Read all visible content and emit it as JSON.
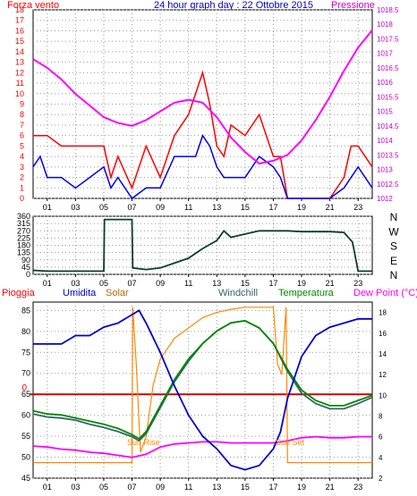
{
  "chart_data": [
    {
      "type": "line",
      "title": "24 hour graph day : 22 Ottobre 2015",
      "left_label": "Forza vento",
      "right_label": "Pressione",
      "x_ticks": [
        "01",
        "03",
        "05",
        "07",
        "09",
        "11",
        "13",
        "15",
        "17",
        "19",
        "21",
        "23"
      ],
      "y_left_ticks": [
        0,
        1,
        2,
        3,
        4,
        5,
        6,
        7,
        8,
        9,
        10,
        11,
        12,
        13,
        14,
        15,
        16,
        17,
        18
      ],
      "y_left_range": [
        0,
        18
      ],
      "y_right_ticks": [
        "1012",
        "1012.5",
        "1013",
        "1013.5",
        "1014",
        "1014.5",
        "1015",
        "1015.5",
        "1016",
        "1016.5",
        "1017",
        "1017.5",
        "1018",
        "1018.5"
      ],
      "y_right_range": [
        1012,
        1018.5
      ],
      "grid": true,
      "series": [
        {
          "name": "Forza vento",
          "color": "#ff0000",
          "axis": "left",
          "x": [
            0,
            1,
            2,
            3,
            4,
            5,
            5.5,
            6,
            7,
            8,
            9,
            10,
            11,
            11.5,
            12,
            12.5,
            13,
            13.5,
            14,
            15,
            16,
            17,
            17.5,
            18,
            19,
            20,
            21,
            22,
            22.5,
            23,
            23.5,
            24
          ],
          "values": [
            6,
            6,
            5,
            5,
            5,
            5,
            2,
            4,
            1,
            5,
            2,
            6,
            8,
            10,
            12,
            9,
            5,
            4,
            7,
            6,
            8,
            4,
            4,
            0,
            0,
            0,
            0,
            2,
            5,
            5,
            4,
            3
          ]
        },
        {
          "name": "",
          "color": "#0000ee",
          "axis": "left",
          "x": [
            0,
            0.5,
            1,
            2,
            3,
            4,
            5,
            5.5,
            6,
            7,
            8,
            9,
            10,
            11,
            11.5,
            12,
            12.5,
            13,
            13.5,
            14,
            15,
            16,
            17,
            17.5,
            18,
            19,
            20,
            21,
            22,
            22.5,
            23,
            23.5,
            24
          ],
          "values": [
            3,
            4,
            2,
            2,
            1,
            2,
            3,
            1,
            2,
            0,
            1,
            1,
            4,
            4,
            4,
            6,
            5,
            3,
            2,
            2,
            2,
            4,
            3,
            2,
            0,
            0,
            0,
            0,
            1,
            2,
            3,
            2,
            1
          ]
        },
        {
          "name": "Pressione",
          "color": "#ff00ff",
          "axis": "right",
          "x": [
            0,
            1,
            2,
            3,
            4,
            5,
            6,
            7,
            8,
            9,
            10,
            11,
            12,
            13,
            14,
            15,
            16,
            17,
            18,
            19,
            20,
            21,
            22,
            23,
            24
          ],
          "values": [
            1016.8,
            1016.5,
            1016.1,
            1015.6,
            1015.2,
            1014.8,
            1014.6,
            1014.5,
            1014.7,
            1015,
            1015.3,
            1015.4,
            1015.3,
            1014.8,
            1014.1,
            1013.6,
            1013.2,
            1013.3,
            1013.5,
            1014,
            1014.7,
            1015.5,
            1016.4,
            1017.2,
            1017.8
          ]
        }
      ]
    },
    {
      "type": "line",
      "right_labels": [
        "N",
        "W",
        "S",
        "E",
        "N"
      ],
      "y_ticks": [
        0,
        45,
        90,
        135,
        180,
        225,
        270,
        315,
        360
      ],
      "y_range": [
        0,
        360
      ],
      "x_ticks": [
        "01",
        "03",
        "05",
        "07",
        "09",
        "11",
        "13",
        "15",
        "17",
        "19",
        "21",
        "23"
      ],
      "grid": true,
      "series": [
        {
          "name": "",
          "color": "#0b3d2e",
          "x": [
            0,
            1,
            2,
            3,
            4,
            5,
            5.05,
            6,
            7,
            7.05,
            8,
            9,
            10,
            11,
            12,
            13,
            13.5,
            14,
            15,
            16,
            17,
            18,
            19,
            20,
            21,
            22,
            22.6,
            23,
            24
          ],
          "values": [
            25,
            20,
            20,
            20,
            20,
            20,
            340,
            340,
            340,
            40,
            30,
            40,
            70,
            100,
            160,
            210,
            270,
            230,
            250,
            270,
            270,
            270,
            265,
            265,
            265,
            260,
            200,
            20,
            20
          ]
        }
      ]
    },
    {
      "type": "line",
      "labels_top": [
        "Pioggia",
        "Umidita",
        "Solar",
        "Windchill",
        "Temperatura",
        "Dew Point (°C)"
      ],
      "label_colors": [
        "#ff0000",
        "#0000cc",
        "#cc6600",
        "#336666",
        "#008800",
        "#ff00ff"
      ],
      "y_left_ticks": [
        45,
        50,
        55,
        60,
        65,
        70,
        75,
        80,
        85
      ],
      "y_left_range": [
        45,
        87
      ],
      "y_right_ticks": [
        2,
        4,
        6,
        8,
        10,
        12,
        14,
        16,
        18
      ],
      "y_right_range": [
        2,
        19
      ],
      "rain_left_value": "0",
      "annotations": [
        "Sun Rise",
        "Sun Set"
      ],
      "x_ticks": [
        "01",
        "03",
        "05",
        "07",
        "09",
        "11",
        "13",
        "15",
        "17",
        "19",
        "21",
        "23"
      ],
      "grid": true,
      "series": [
        {
          "name": "Umidita",
          "color": "#0000cc",
          "axis": "left",
          "x": [
            0,
            2,
            3,
            4,
            5,
            6,
            7,
            7.5,
            8,
            9,
            10,
            11,
            12,
            13,
            14,
            15,
            16,
            17,
            17.5,
            18,
            19,
            20,
            21,
            22,
            23,
            24
          ],
          "values": [
            77,
            77,
            79,
            79,
            81,
            82,
            84,
            85,
            82,
            75,
            67,
            60,
            55,
            52,
            48,
            47,
            48,
            52,
            56,
            64,
            74,
            79,
            81,
            82,
            83,
            83
          ]
        },
        {
          "name": "Temperatura",
          "color": "#008800",
          "axis": "right",
          "x": [
            0,
            1,
            2,
            3,
            4,
            5,
            6,
            7,
            7.5,
            8,
            9,
            10,
            11,
            12,
            13,
            14,
            15,
            16,
            17,
            18,
            19,
            20,
            21,
            22,
            23,
            24
          ],
          "values": [
            8.5,
            8.2,
            8.1,
            7.8,
            7.5,
            7.2,
            6.8,
            6.2,
            5.8,
            6.5,
            9,
            11.5,
            13.5,
            15,
            16.2,
            17,
            17.2,
            16.5,
            15,
            12.5,
            10.5,
            9.5,
            9,
            9,
            9.5,
            10
          ]
        },
        {
          "name": "Windchill",
          "color": "#336666",
          "axis": "right",
          "x": [
            0,
            1,
            2,
            3,
            4,
            5,
            6,
            7,
            7.5,
            8,
            9,
            10,
            11,
            12,
            13,
            14,
            15,
            16,
            17,
            18,
            19,
            20,
            21,
            22,
            23,
            24
          ],
          "values": [
            8.2,
            7.9,
            7.8,
            7.6,
            7.2,
            6.9,
            6.5,
            6,
            5.6,
            6.3,
            8.8,
            11.3,
            13.3,
            15,
            16.2,
            17,
            17.2,
            16.5,
            15,
            12.3,
            10.2,
            9.2,
            8.7,
            8.7,
            9.2,
            9.8
          ]
        },
        {
          "name": "Dew Point (°C)",
          "color": "#ff00ff",
          "axis": "right",
          "x": [
            0,
            1,
            2,
            3,
            4,
            5,
            6,
            7,
            8,
            9,
            10,
            11,
            12,
            13,
            14,
            15,
            16,
            17,
            18,
            19,
            20,
            21,
            22,
            23,
            24
          ],
          "values": [
            5.1,
            5,
            4.8,
            4.7,
            4.5,
            4.4,
            4.2,
            4,
            4.3,
            5,
            5.3,
            5.4,
            5.5,
            5.5,
            5.4,
            5.4,
            5.4,
            5.4,
            5.6,
            5.9,
            6,
            5.9,
            5.9,
            6,
            6
          ]
        },
        {
          "name": "Solar",
          "color": "#ff8800",
          "axis": "right",
          "x": [
            0,
            7,
            7.05,
            7.3,
            7.6,
            8,
            8.5,
            9,
            10,
            11,
            12,
            13,
            14,
            15,
            16,
            17,
            17.3,
            17.6,
            17.9,
            18,
            24
          ],
          "values": [
            3.5,
            3.5,
            18.5,
            13,
            4.5,
            6,
            11,
            13.5,
            15.5,
            16.5,
            17.5,
            18,
            18.3,
            18.5,
            18.5,
            18.5,
            13,
            12,
            18.5,
            3.5,
            3.5
          ]
        }
      ]
    }
  ]
}
